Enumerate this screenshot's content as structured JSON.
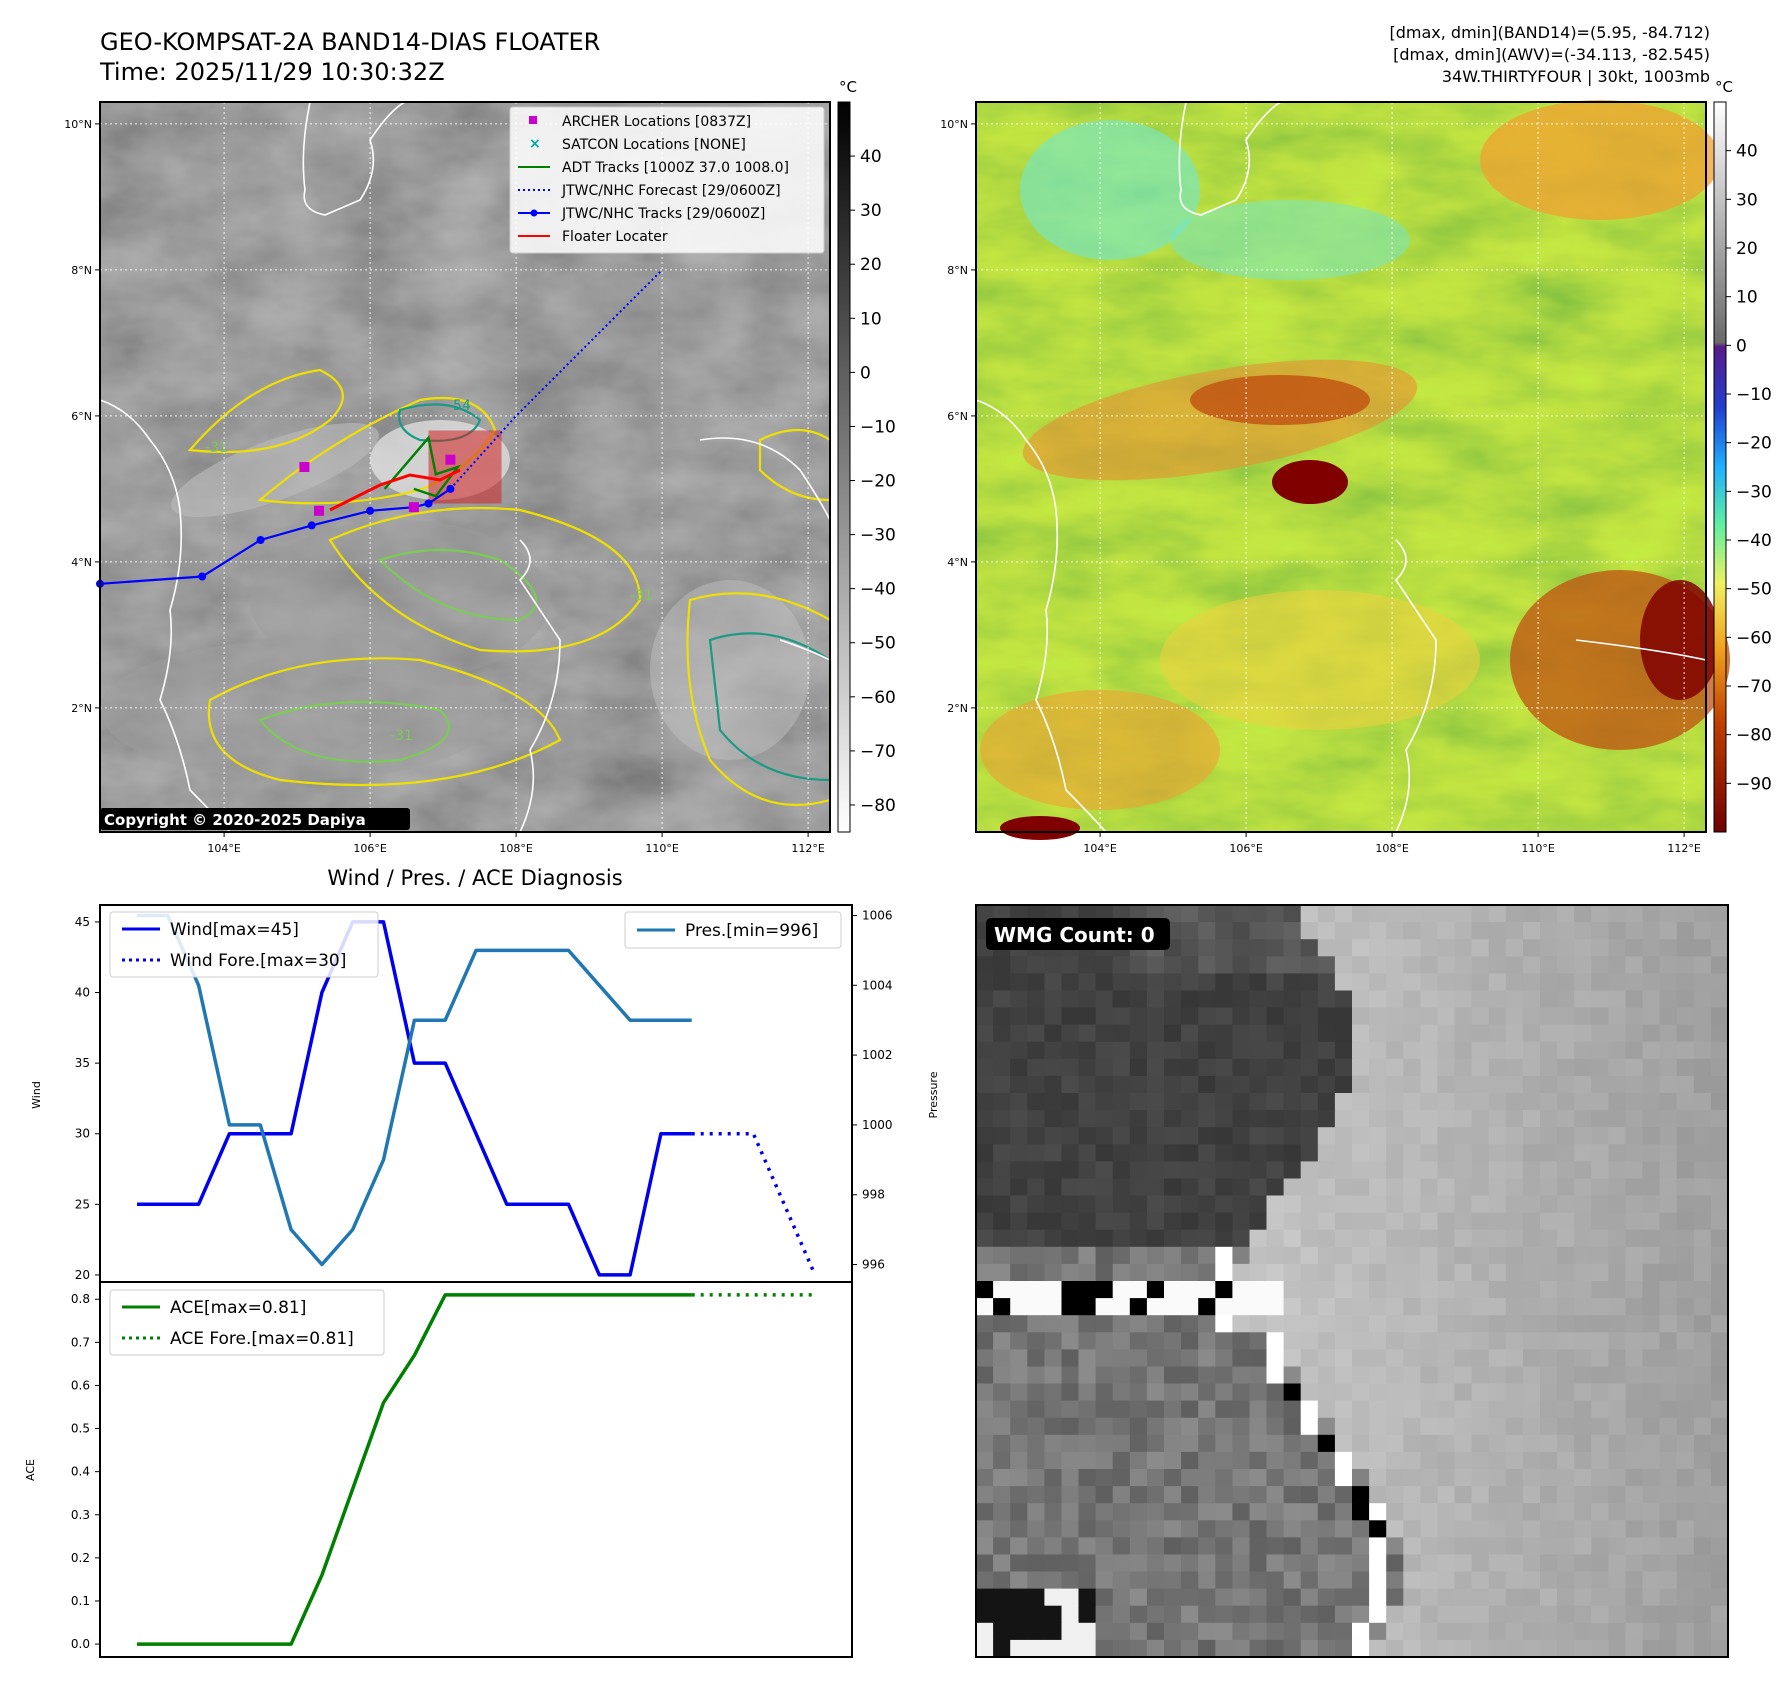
{
  "figure": {
    "title_line1": "GEO-KOMPSAT-2A BAND14-DIAS FLOATER",
    "title_line2": "Time: 2025/11/29 10:30:32Z",
    "info_line1": "[dmax, dmin](BAND14)=(5.95, -84.712)",
    "info_line2": "[dmax, dmin](AWV)=(-34.113, -82.545)",
    "info_line3": "34W.THIRTYFOUR | 30kt, 1003mb",
    "copyright": "Copyright © 2020-2025 Dapiya"
  },
  "colors": {
    "wind": "#0000ee",
    "pressure": "#1f77b4",
    "ace": "#008000",
    "jtwc_track": "#0000ff",
    "adt": "#008000",
    "archer": "#cc00cc",
    "satcon": "#00aaaa",
    "floater": "#ff0000",
    "contour_yellow": "#f0e000",
    "contour_green": "#7acc55",
    "contour_teal": "#1a9a85"
  },
  "chart_data": [
    {
      "type": "map",
      "panel": "band14",
      "lon_ticks": [
        "104°E",
        "106°E",
        "108°E",
        "110°E",
        "112°E"
      ],
      "lat_ticks": [
        "10°N",
        "8°N",
        "6°N",
        "4°N",
        "2°N"
      ],
      "lon_range": [
        102.3,
        112.3
      ],
      "lat_range": [
        0.3,
        10.3
      ],
      "colorbar": {
        "unit": "°C",
        "ticks": [
          "40",
          "30",
          "20",
          "10",
          "0",
          "−10",
          "−20",
          "−30",
          "−40",
          "−50",
          "−60",
          "−70",
          "−80"
        ],
        "range": [
          -85,
          50
        ]
      },
      "contour_labels": [
        "-54",
        "-31",
        "-31",
        "-31"
      ],
      "legend": [
        {
          "label": "ARCHER Locations [0837Z]",
          "marker": "square"
        },
        {
          "label": "SATCON Locations [NONE]",
          "marker": "x"
        },
        {
          "label": "ADT Tracks [1000Z 37.0 1008.0]",
          "marker": "line"
        },
        {
          "label": "JTWC/NHC Forecast [29/0600Z]",
          "marker": "dotted"
        },
        {
          "label": "JTWC/NHC Tracks [29/0600Z]",
          "marker": "line-dot"
        },
        {
          "label": "Floater Locater",
          "marker": "line"
        }
      ],
      "jtwc_track": [
        [
          102.3,
          3.7
        ],
        [
          103.7,
          3.8
        ],
        [
          104.5,
          4.3
        ],
        [
          105.2,
          4.5
        ],
        [
          106.0,
          4.7
        ],
        [
          106.6,
          4.75
        ],
        [
          106.8,
          4.8
        ],
        [
          107.1,
          5.0
        ]
      ],
      "jtwc_forecast": [
        [
          107.1,
          5.0
        ],
        [
          108.0,
          6.0
        ],
        [
          109.0,
          7.0
        ],
        [
          110.0,
          8.0
        ]
      ],
      "archer_points": [
        [
          105.1,
          5.3
        ],
        [
          105.3,
          4.7
        ],
        [
          106.6,
          4.75
        ],
        [
          107.1,
          5.4
        ]
      ],
      "adt_track": [
        [
          106.2,
          5.0
        ],
        [
          106.8,
          5.7
        ],
        [
          106.9,
          5.2
        ],
        [
          107.2,
          5.3
        ],
        [
          106.9,
          4.9
        ],
        [
          106.6,
          5.0
        ]
      ],
      "floater_box": {
        "lon": [
          106.8,
          107.8
        ],
        "lat": [
          4.8,
          5.8
        ]
      }
    },
    {
      "type": "map",
      "panel": "awv",
      "lon_ticks": [
        "104°E",
        "106°E",
        "108°E",
        "110°E",
        "112°E"
      ],
      "lat_ticks": [
        "10°N",
        "8°N",
        "6°N",
        "4°N",
        "2°N"
      ],
      "colorbar": {
        "unit": "°C",
        "ticks": [
          "40",
          "30",
          "20",
          "10",
          "0",
          "−10",
          "−20",
          "−30",
          "−40",
          "−50",
          "−60",
          "−70",
          "−80",
          "−90"
        ],
        "range": [
          -100,
          50
        ]
      }
    },
    {
      "type": "line",
      "panel": "wind-pressure",
      "title": "Wind / Pres. / ACE Diagnosis",
      "ylabel": "Wind",
      "y2label": "Pressure",
      "ylim": [
        19.5,
        46.2
      ],
      "y2lim": [
        995.5,
        1006.3
      ],
      "yticks": [
        "20",
        "25",
        "30",
        "35",
        "40",
        "45"
      ],
      "y2ticks": [
        "996",
        "998",
        "1000",
        "1002",
        "1004",
        "1006"
      ],
      "x": [
        0,
        1,
        2,
        3,
        4,
        5,
        6,
        7,
        8,
        9,
        10,
        11,
        12,
        13,
        14,
        15,
        16,
        17,
        18,
        19,
        20,
        21,
        22
      ],
      "series": [
        {
          "name": "Wind[max=45]",
          "axis": "left",
          "style": "solid",
          "x": [
            0,
            2,
            3,
            4,
            5,
            6,
            7,
            8,
            9,
            10,
            11,
            12,
            13,
            14,
            15,
            16,
            17,
            18
          ],
          "values": [
            25,
            25,
            30,
            30,
            30,
            40,
            45,
            45,
            35,
            35,
            30,
            25,
            25,
            25,
            20,
            20,
            30,
            30
          ]
        },
        {
          "name": "Wind Fore.[max=30]",
          "axis": "left",
          "style": "dotted",
          "x": [
            18,
            19,
            20,
            21,
            22
          ],
          "values": [
            30,
            30,
            30,
            25,
            20
          ]
        },
        {
          "name": "Pres.[min=996]",
          "axis": "right",
          "style": "solid",
          "x": [
            0,
            1,
            2,
            3,
            4,
            5,
            6,
            7,
            8,
            9,
            10,
            11,
            12,
            13,
            14,
            15,
            16,
            17,
            18
          ],
          "values": [
            1006,
            1006,
            1004,
            1000,
            1000,
            997,
            996,
            997,
            999,
            1003,
            1003,
            1005,
            1005,
            1005,
            1005,
            1004,
            1003,
            1003,
            1003
          ]
        }
      ]
    },
    {
      "type": "line",
      "panel": "ace",
      "ylabel": "ACE",
      "ylim": [
        -0.03,
        0.84
      ],
      "yticks": [
        "0.0",
        "0.1",
        "0.2",
        "0.3",
        "0.4",
        "0.5",
        "0.6",
        "0.7",
        "0.8"
      ],
      "series": [
        {
          "name": "ACE[max=0.81]",
          "style": "solid",
          "x": [
            0,
            2,
            3,
            4,
            5,
            6,
            7,
            8,
            9,
            10,
            11,
            12,
            13,
            14,
            15,
            16,
            17,
            18
          ],
          "values": [
            0,
            0,
            0,
            0,
            0,
            0.16,
            0.36,
            0.56,
            0.67,
            0.81,
            0.81,
            0.81,
            0.81,
            0.81,
            0.81,
            0.81,
            0.81,
            0.81
          ]
        },
        {
          "name": "ACE Fore.[max=0.81]",
          "style": "dotted",
          "x": [
            18,
            19,
            20,
            21,
            22
          ],
          "values": [
            0.81,
            0.81,
            0.81,
            0.81,
            0.81
          ]
        }
      ]
    },
    {
      "type": "heatmap",
      "panel": "wmg",
      "label": "WMG Count: 0"
    }
  ]
}
